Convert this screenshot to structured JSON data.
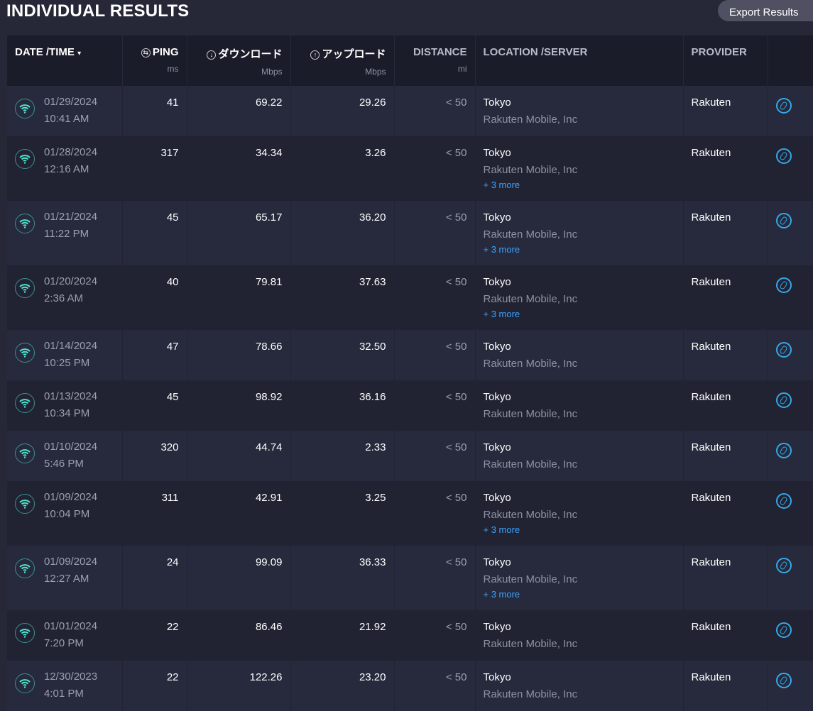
{
  "title": "INDIVIDUAL RESULTS",
  "export_label": "Export Results",
  "columns": {
    "datetime": "DATE /TIME",
    "sort_arrow": "▾",
    "ping": "PING",
    "ping_unit": "ms",
    "download": "ダウンロード",
    "download_unit": "Mbps",
    "upload": "アップロード",
    "upload_unit": "Mbps",
    "distance": "DISTANCE",
    "distance_unit": "mi",
    "location": "LOCATION /SERVER",
    "provider": "PROVIDER"
  },
  "colors": {
    "accent": "#35a8e8",
    "wifi": "#4fe3d0",
    "more_link": "#3aa3ff"
  },
  "rows": [
    {
      "date": "01/29/2024",
      "time": "10:41 AM",
      "ping": "41",
      "download": "69.22",
      "upload": "29.26",
      "distance": "< 50",
      "location": "Tokyo",
      "server": "Rakuten Mobile, Inc",
      "more": "",
      "provider": "Rakuten"
    },
    {
      "date": "01/28/2024",
      "time": "12:16 AM",
      "ping": "317",
      "download": "34.34",
      "upload": "3.26",
      "distance": "< 50",
      "location": "Tokyo",
      "server": "Rakuten Mobile, Inc",
      "more": "+ 3 more",
      "provider": "Rakuten"
    },
    {
      "date": "01/21/2024",
      "time": "11:22 PM",
      "ping": "45",
      "download": "65.17",
      "upload": "36.20",
      "distance": "< 50",
      "location": "Tokyo",
      "server": "Rakuten Mobile, Inc",
      "more": "+ 3 more",
      "provider": "Rakuten"
    },
    {
      "date": "01/20/2024",
      "time": "2:36 AM",
      "ping": "40",
      "download": "79.81",
      "upload": "37.63",
      "distance": "< 50",
      "location": "Tokyo",
      "server": "Rakuten Mobile, Inc",
      "more": "+ 3 more",
      "provider": "Rakuten"
    },
    {
      "date": "01/14/2024",
      "time": "10:25 PM",
      "ping": "47",
      "download": "78.66",
      "upload": "32.50",
      "distance": "< 50",
      "location": "Tokyo",
      "server": "Rakuten Mobile, Inc",
      "more": "",
      "provider": "Rakuten"
    },
    {
      "date": "01/13/2024",
      "time": "10:34 PM",
      "ping": "45",
      "download": "98.92",
      "upload": "36.16",
      "distance": "< 50",
      "location": "Tokyo",
      "server": "Rakuten Mobile, Inc",
      "more": "",
      "provider": "Rakuten"
    },
    {
      "date": "01/10/2024",
      "time": "5:46 PM",
      "ping": "320",
      "download": "44.74",
      "upload": "2.33",
      "distance": "< 50",
      "location": "Tokyo",
      "server": "Rakuten Mobile, Inc",
      "more": "",
      "provider": "Rakuten"
    },
    {
      "date": "01/09/2024",
      "time": "10:04 PM",
      "ping": "311",
      "download": "42.91",
      "upload": "3.25",
      "distance": "< 50",
      "location": "Tokyo",
      "server": "Rakuten Mobile, Inc",
      "more": "+ 3 more",
      "provider": "Rakuten"
    },
    {
      "date": "01/09/2024",
      "time": "12:27 AM",
      "ping": "24",
      "download": "99.09",
      "upload": "36.33",
      "distance": "< 50",
      "location": "Tokyo",
      "server": "Rakuten Mobile, Inc",
      "more": "+ 3 more",
      "provider": "Rakuten"
    },
    {
      "date": "01/01/2024",
      "time": "7:20 PM",
      "ping": "22",
      "download": "86.46",
      "upload": "21.92",
      "distance": "< 50",
      "location": "Tokyo",
      "server": "Rakuten Mobile, Inc",
      "more": "",
      "provider": "Rakuten"
    },
    {
      "date": "12/30/2023",
      "time": "4:01 PM",
      "ping": "22",
      "download": "122.26",
      "upload": "23.20",
      "distance": "< 50",
      "location": "Tokyo",
      "server": "Rakuten Mobile, Inc",
      "more": "",
      "provider": "Rakuten"
    }
  ]
}
